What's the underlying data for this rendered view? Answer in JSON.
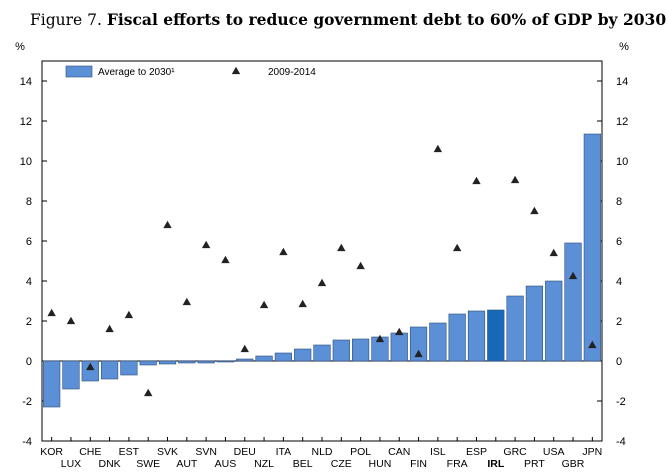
{
  "figure": {
    "lead": "Figure 7.",
    "title": "Fiscal efforts to reduce government debt to 60% of GDP by 2030"
  },
  "colors": {
    "bar": "#5b8fd6",
    "bar_highlight": "#1769b8",
    "bar_stroke": "#2f4f7a",
    "marker": "#222222"
  },
  "chart_data": {
    "type": "bar",
    "ylabel_left": "%",
    "ylabel_right": "%",
    "ylim": [
      -4,
      15
    ],
    "yticks": [
      -4,
      -2,
      0,
      2,
      4,
      6,
      8,
      10,
      12,
      14
    ],
    "grid": false,
    "legend_position": "top-left",
    "highlight": "IRL",
    "categories": [
      "KOR",
      "LUX",
      "CHE",
      "DNK",
      "EST",
      "SWE",
      "SVK",
      "AUT",
      "SVN",
      "AUS",
      "DEU",
      "NZL",
      "ITA",
      "BEL",
      "NLD",
      "CZE",
      "POL",
      "HUN",
      "CAN",
      "FIN",
      "ISL",
      "FRA",
      "ESP",
      "IRL",
      "GRC",
      "PRT",
      "USA",
      "GBR",
      "JPN"
    ],
    "series": [
      {
        "name": "Average to 2030¹",
        "kind": "bar",
        "values": [
          -2.3,
          -1.4,
          -1.0,
          -0.9,
          -0.7,
          -0.2,
          -0.15,
          -0.1,
          -0.1,
          -0.05,
          0.1,
          0.25,
          0.4,
          0.6,
          0.8,
          1.05,
          1.1,
          1.2,
          1.4,
          1.7,
          1.9,
          2.35,
          2.5,
          2.55,
          3.25,
          3.75,
          4.0,
          5.9,
          11.35
        ]
      },
      {
        "name": "2009-2014",
        "kind": "marker",
        "values": [
          2.4,
          2.0,
          -0.3,
          1.6,
          2.3,
          -1.6,
          6.8,
          2.95,
          5.8,
          5.05,
          0.6,
          2.8,
          5.45,
          2.85,
          3.9,
          5.65,
          4.75,
          1.1,
          1.45,
          0.35,
          10.6,
          5.65,
          9.0,
          null,
          9.05,
          7.5,
          5.4,
          4.25,
          0.8
        ]
      }
    ]
  }
}
